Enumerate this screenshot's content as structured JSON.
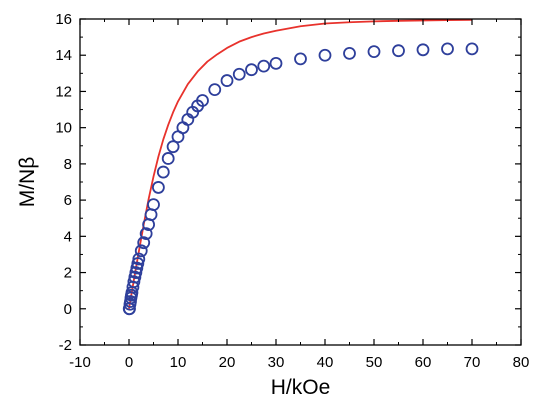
{
  "chart_data": {
    "type": "scatter",
    "xlabel": "H/kOe",
    "ylabel": "M/Nβ",
    "xlim": [
      -10,
      80
    ],
    "ylim": [
      -2,
      16
    ],
    "xticks": [
      -10,
      0,
      10,
      20,
      30,
      40,
      50,
      60,
      70,
      80
    ],
    "yticks": [
      -2,
      0,
      2,
      4,
      6,
      8,
      10,
      12,
      14,
      16
    ],
    "grid": false,
    "legend": "none",
    "series": [
      {
        "kind": "scatter",
        "color": "#2e3f9b",
        "marker": "open-circle",
        "x": [
          0.05,
          0.1,
          0.2,
          0.3,
          0.4,
          0.5,
          0.6,
          0.8,
          1.0,
          1.2,
          1.4,
          1.6,
          1.8,
          2.0,
          2.5,
          3.0,
          3.5,
          4.0,
          4.5,
          5.0,
          6.0,
          7.0,
          8.0,
          9.0,
          10.0,
          11.0,
          12.0,
          13.0,
          14.0,
          15.0,
          17.5,
          20.0,
          22.5,
          25.0,
          27.5,
          30.0,
          35.0,
          40.0,
          45.0,
          50.0,
          55.0,
          60.0,
          65.0,
          70.0
        ],
        "y": [
          0.0,
          0.0,
          0.25,
          0.4,
          0.6,
          0.75,
          0.9,
          1.2,
          1.5,
          1.75,
          2.0,
          2.25,
          2.5,
          2.75,
          3.2,
          3.65,
          4.15,
          4.65,
          5.2,
          5.75,
          6.7,
          7.55,
          8.3,
          8.95,
          9.5,
          10.0,
          10.45,
          10.85,
          11.2,
          11.5,
          12.1,
          12.6,
          12.95,
          13.2,
          13.4,
          13.55,
          13.8,
          14.0,
          14.1,
          14.2,
          14.25,
          14.3,
          14.35,
          14.35
        ]
      },
      {
        "kind": "line",
        "color": "#e8322c",
        "x": [
          0,
          1,
          2,
          3,
          4,
          5,
          6,
          7,
          8,
          9,
          10,
          12,
          14,
          16,
          18,
          20,
          22.5,
          25,
          27.5,
          30,
          35,
          40,
          45,
          50,
          55,
          60,
          65,
          70
        ],
        "y": [
          0.0,
          1.6,
          3.15,
          4.65,
          6.05,
          7.3,
          8.4,
          9.35,
          10.15,
          10.85,
          11.45,
          12.4,
          13.1,
          13.65,
          14.05,
          14.4,
          14.75,
          15.0,
          15.2,
          15.35,
          15.6,
          15.75,
          15.82,
          15.87,
          15.9,
          15.92,
          15.94,
          15.95
        ]
      }
    ]
  }
}
